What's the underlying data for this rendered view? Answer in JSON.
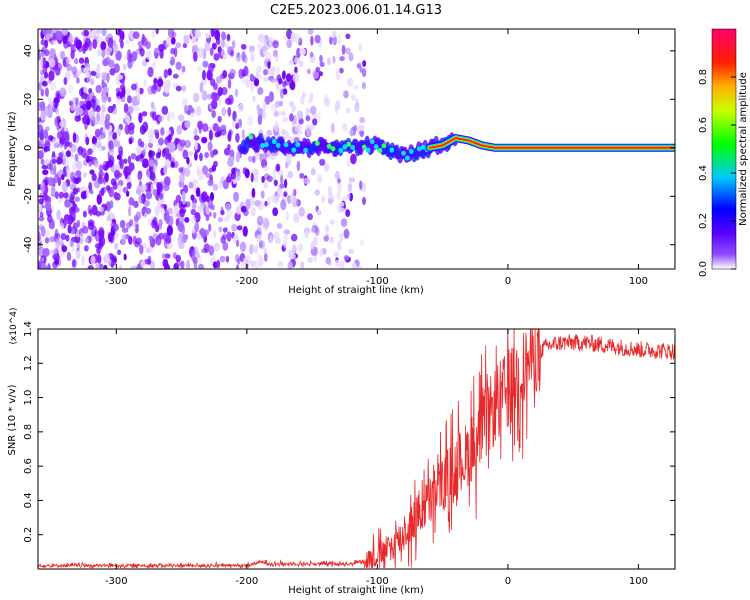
{
  "title": "C2E5.2023.006.01.14.G13",
  "chart_data": [
    {
      "type": "heatmap",
      "xlabel": "Height of straight line (km)",
      "ylabel": "Frequency (Hz)",
      "xlim": [
        -360,
        128
      ],
      "ylim": [
        -50,
        49
      ],
      "xticks": [
        -300,
        -200,
        -100,
        0,
        100
      ],
      "yticks": [
        -40,
        -20,
        0,
        20,
        40
      ],
      "xtick_labels": [
        "-300",
        "-200",
        "-100",
        "0",
        "100"
      ],
      "ytick_labels": [
        "-40",
        "-20",
        "0",
        "20",
        "40"
      ],
      "colorbar": {
        "label": "Normalized spectral amplitude",
        "range": [
          0,
          1
        ],
        "ticks": [
          0.0,
          0.2,
          0.4,
          0.6,
          0.8
        ],
        "tick_labels": [
          "0.0",
          "0.2",
          "0.4",
          "0.6",
          "0.8"
        ],
        "colormap": [
          "#ffffff",
          "#6a00ff",
          "#0000ff",
          "#00c8ff",
          "#00ff00",
          "#ffff00",
          "#ff8000",
          "#ff0000",
          "#ff00a0"
        ]
      },
      "noise_region": {
        "x": [
          -360,
          -110
        ],
        "y": [
          -50,
          49
        ]
      },
      "signal_ridge": {
        "x": [
          -200,
          -180,
          -160,
          -140,
          -120,
          -100,
          -90,
          -80,
          -70,
          -60,
          -50,
          -40,
          -30,
          -20,
          -10,
          0,
          20,
          40,
          60,
          80,
          100,
          128
        ],
        "freq": [
          3,
          1,
          0,
          1,
          0,
          1,
          -2,
          -3,
          -2,
          0,
          1,
          4,
          3,
          1,
          0,
          0,
          0,
          0,
          0,
          0,
          0,
          0
        ]
      },
      "grid": false
    },
    {
      "type": "line",
      "xlabel": "Height of straight line (km)",
      "ylabel": "SNR (10 * v/v)",
      "y_multiplier_label": "(x10^4)",
      "xlim": [
        -360,
        128
      ],
      "ylim": [
        0,
        1.4
      ],
      "xticks": [
        -300,
        -200,
        -100,
        0,
        100
      ],
      "yticks": [
        0.2,
        0.4,
        0.6,
        0.8,
        1.0,
        1.2,
        1.4
      ],
      "xtick_labels": [
        "-300",
        "-200",
        "-100",
        "0",
        "100"
      ],
      "ytick_labels": [
        "0.2",
        "0.4",
        "0.6",
        "0.8",
        "1.0",
        "1.2",
        "1.4"
      ],
      "series": [
        {
          "color": "#e8282a",
          "x": [
            -360,
            -300,
            -250,
            -200,
            -190,
            -180,
            -150,
            -120,
            -110,
            -100,
            -90,
            -80,
            -70,
            -60,
            -50,
            -40,
            -30,
            -20,
            -10,
            0,
            10,
            20,
            30,
            40,
            60,
            80,
            100,
            128
          ],
          "y": [
            0.02,
            0.02,
            0.02,
            0.02,
            0.04,
            0.03,
            0.03,
            0.03,
            0.05,
            0.08,
            0.12,
            0.2,
            0.3,
            0.4,
            0.5,
            0.6,
            0.68,
            0.8,
            0.95,
            1.05,
            1.15,
            1.25,
            1.3,
            1.32,
            1.32,
            1.3,
            1.28,
            1.27
          ]
        }
      ],
      "grid": false
    }
  ]
}
